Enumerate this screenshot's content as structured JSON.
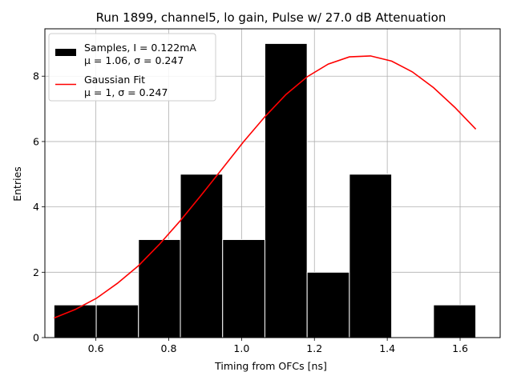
{
  "chart_data": {
    "type": "bar",
    "title": "Run 1899, channel5, lo gain, Pulse w/ 27.0 dB Attenuation",
    "xlabel": "Timing from OFCs [ns]",
    "ylabel": "Entries",
    "xlim": [
      0.46,
      1.71
    ],
    "ylim": [
      0,
      9.45
    ],
    "xticks": [
      0.6,
      0.8,
      1.0,
      1.2,
      1.4,
      1.6
    ],
    "xtick_labels": [
      "0.6",
      "0.8",
      "1.0",
      "1.2",
      "1.4",
      "1.6"
    ],
    "yticks": [
      0,
      2,
      4,
      6,
      8
    ],
    "ytick_labels": [
      "0",
      "2",
      "4",
      "6",
      "8"
    ],
    "grid": true,
    "legend_position": "top-left",
    "histogram": {
      "name": "Samples",
      "color": "#000000",
      "bins": [
        {
          "x0": 0.485,
          "x1": 0.601,
          "count": 1
        },
        {
          "x0": 0.601,
          "x1": 0.717,
          "count": 1
        },
        {
          "x0": 0.717,
          "x1": 0.832,
          "count": 3
        },
        {
          "x0": 0.832,
          "x1": 0.948,
          "count": 5
        },
        {
          "x0": 0.948,
          "x1": 1.064,
          "count": 3
        },
        {
          "x0": 1.064,
          "x1": 1.18,
          "count": 9
        },
        {
          "x0": 1.18,
          "x1": 1.296,
          "count": 2
        },
        {
          "x0": 1.296,
          "x1": 1.412,
          "count": 5
        },
        {
          "x0": 1.412,
          "x1": 1.527,
          "count": 0
        },
        {
          "x0": 1.527,
          "x1": 1.643,
          "count": 1
        }
      ]
    },
    "fit": {
      "name": "Gaussian Fit",
      "color": "#ff0000",
      "x": [
        0.485,
        0.543,
        0.601,
        0.659,
        0.717,
        0.774,
        0.832,
        0.89,
        0.948,
        1.006,
        1.064,
        1.122,
        1.18,
        1.238,
        1.296,
        1.354,
        1.412,
        1.469,
        1.527,
        1.585,
        1.643
      ],
      "y": [
        0.6,
        0.86,
        1.2,
        1.66,
        2.2,
        2.85,
        3.58,
        4.37,
        5.18,
        6.0,
        6.76,
        7.44,
        7.98,
        8.37,
        8.59,
        8.62,
        8.46,
        8.13,
        7.65,
        7.05,
        6.38
      ]
    },
    "legend": [
      {
        "kind": "patch",
        "color": "#000000",
        "line1": "Samples, I = 0.122mA",
        "line2": "μ = 1.06, σ = 0.247"
      },
      {
        "kind": "line",
        "color": "#ff0000",
        "line1": "Gaussian Fit",
        "line2": "μ = 1, σ = 0.247"
      }
    ]
  }
}
